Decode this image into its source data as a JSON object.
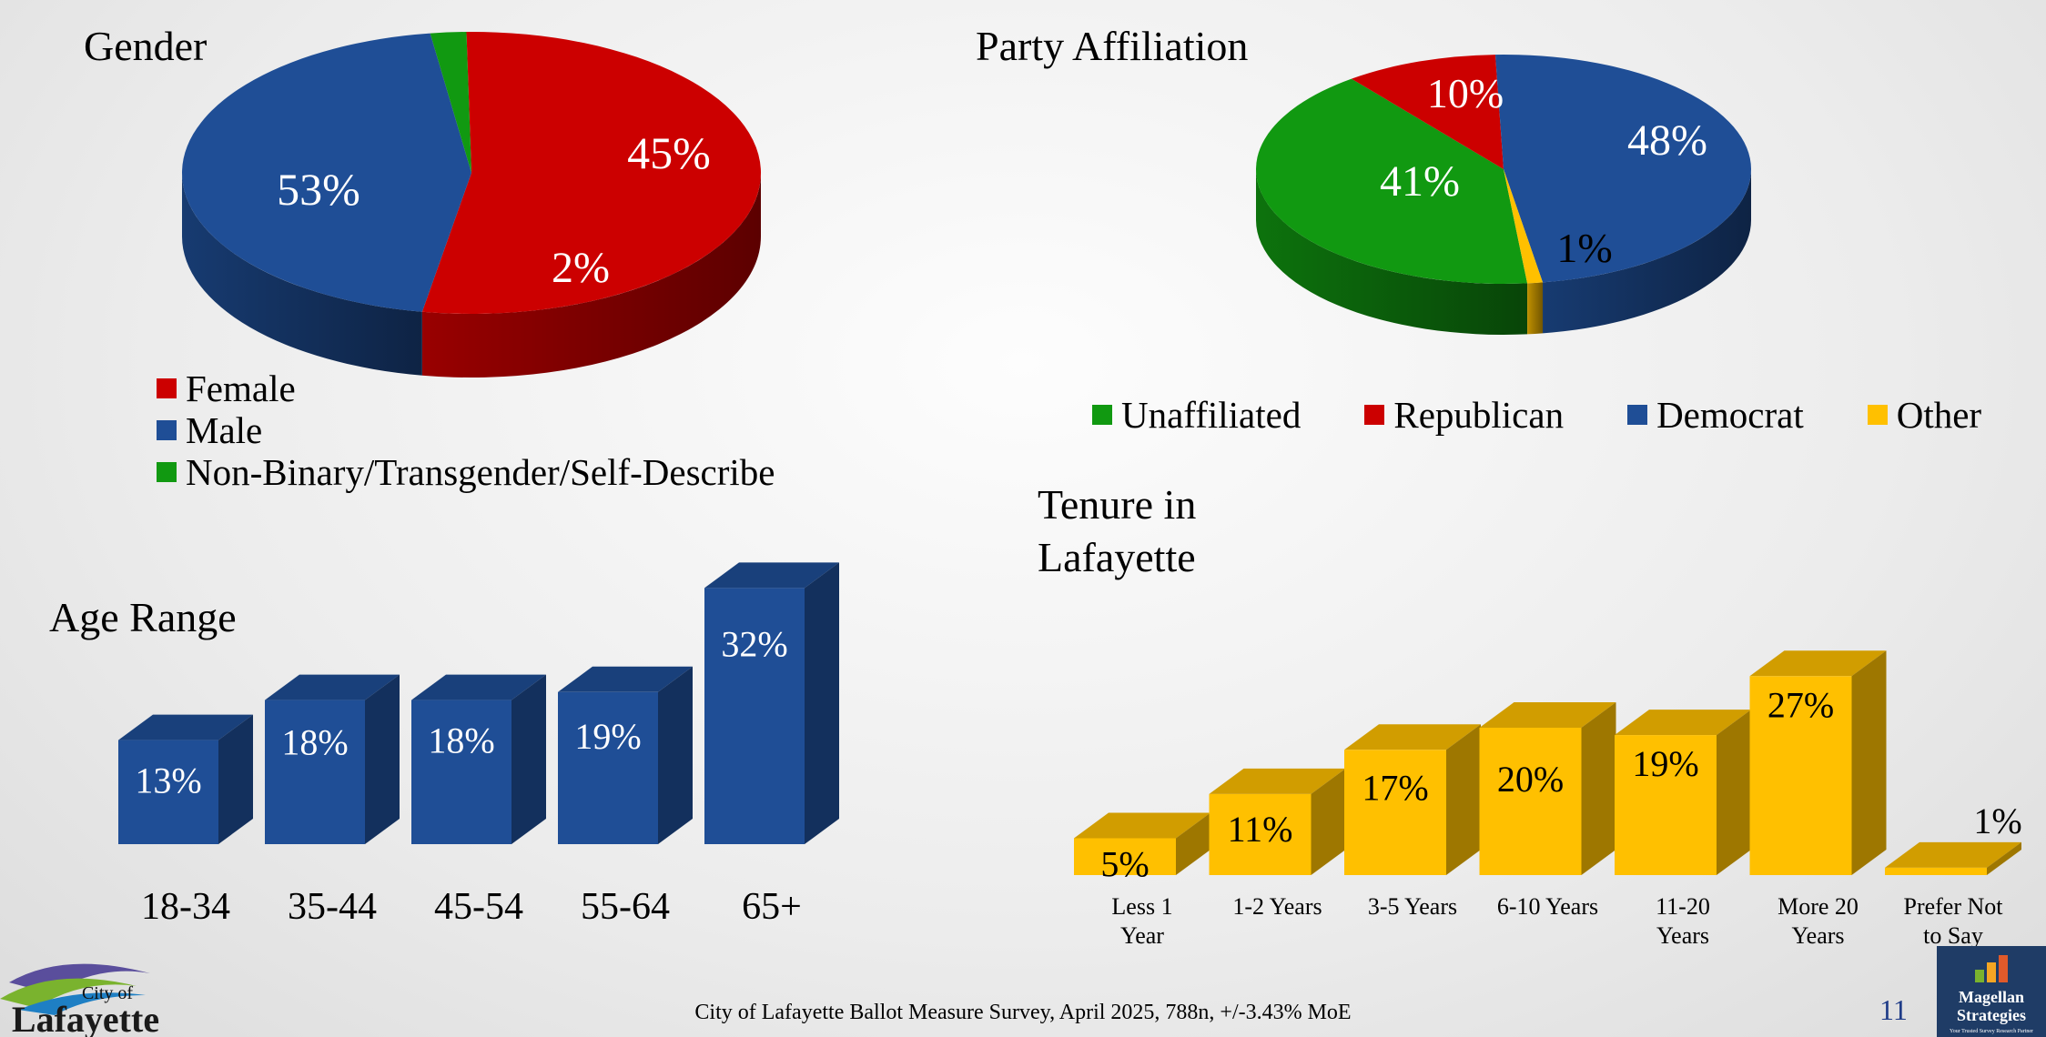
{
  "gender": {
    "title": "Gender",
    "slices": [
      {
        "label": "Female",
        "value": 53,
        "display": "53%",
        "color": "#cc0000"
      },
      {
        "label": "Male",
        "value": 45,
        "display": "45%",
        "color": "#1f4e96"
      },
      {
        "label": "Non-Binary/Transgender/Self-Describe",
        "value": 2,
        "display": "2%",
        "color": "#119911"
      }
    ]
  },
  "party": {
    "title": "Party Affiliation",
    "slices": [
      {
        "label": "Unaffiliated",
        "value": 41,
        "display": "41%",
        "color": "#119911"
      },
      {
        "label": "Republican",
        "value": 10,
        "display": "10%",
        "color": "#cc0000"
      },
      {
        "label": "Democrat",
        "value": 48,
        "display": "48%",
        "color": "#1f4e96"
      },
      {
        "label": "Other",
        "value": 1,
        "display": "1%",
        "color": "#ffc000"
      }
    ]
  },
  "tenure_title_line1": "Tenure in",
  "tenure_title_line2": "Lafayette",
  "age_title": "Age Range",
  "chart_data": [
    {
      "type": "pie",
      "title": "Gender",
      "categories": [
        "Female",
        "Male",
        "Non-Binary/Transgender/Self-Describe"
      ],
      "values": [
        53,
        45,
        2
      ],
      "legend": "bottom"
    },
    {
      "type": "pie",
      "title": "Party Affiliation",
      "categories": [
        "Unaffiliated",
        "Republican",
        "Democrat",
        "Other"
      ],
      "values": [
        41,
        10,
        48,
        1
      ],
      "legend": "bottom"
    },
    {
      "type": "bar",
      "title": "Age Range",
      "categories": [
        "18-34",
        "35-44",
        "45-54",
        "55-64",
        "65+"
      ],
      "values": [
        13,
        18,
        18,
        19,
        32
      ],
      "labels": [
        "13%",
        "18%",
        "18%",
        "19%",
        "32%"
      ],
      "color": "#1f4e96"
    },
    {
      "type": "bar",
      "title": "Tenure in Lafayette",
      "categories": [
        "Less 1 Year",
        "1-2 Years",
        "3-5 Years",
        "6-10 Years",
        "11-20 Years",
        "More 20 Years",
        "Prefer Not to Say"
      ],
      "category_lines": [
        [
          "Less 1",
          "Year"
        ],
        [
          "1-2 Years"
        ],
        [
          "3-5 Years"
        ],
        [
          "6-10 Years"
        ],
        [
          "11-20",
          "Years"
        ],
        [
          "More 20",
          "Years"
        ],
        [
          "Prefer Not",
          "to Say"
        ]
      ],
      "values": [
        5,
        11,
        17,
        20,
        19,
        27,
        1
      ],
      "labels": [
        "5%",
        "11%",
        "17%",
        "20%",
        "19%",
        "27%",
        "1%"
      ],
      "color": "#ffc000"
    }
  ],
  "footer": "City of Lafayette Ballot Measure Survey, April 2025, 788n, +/-3.43% MoE",
  "page_number": "11",
  "logo_left": {
    "line1": "City of",
    "line2": "Lafayette"
  },
  "logo_right": {
    "line1": "Magellan",
    "line2": "Strategies",
    "tagline": "Your Trusted Survey Research Partner"
  }
}
